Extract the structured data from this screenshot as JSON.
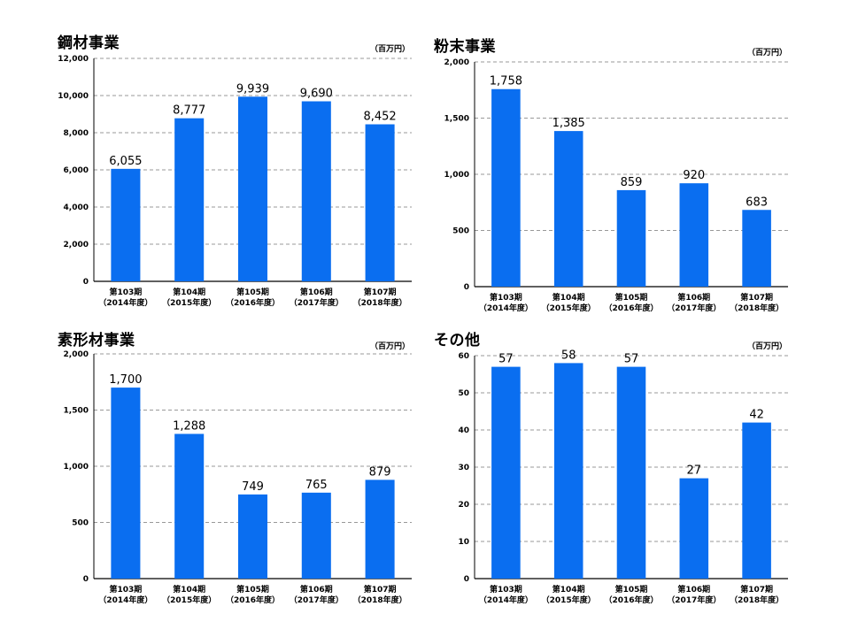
{
  "colors": {
    "bar": "#0a6ef0",
    "grid": "#999999",
    "axis": "#000000"
  },
  "chart_data": [
    {
      "type": "bar",
      "title": "鋼材事業",
      "unit": "（百万円）",
      "categories": [
        "第103期",
        "第104期",
        "第105期",
        "第106期",
        "第107期"
      ],
      "categories_sub": [
        "（2014年度）",
        "（2015年度）",
        "（2016年度）",
        "（2017年度）",
        "（2018年度）"
      ],
      "values": [
        6055,
        8777,
        9939,
        9690,
        8452
      ],
      "data_labels": [
        "6,055",
        "8,777",
        "9,939",
        "9,690",
        "8,452"
      ],
      "yticks": [
        0,
        2000,
        4000,
        6000,
        8000,
        10000,
        12000
      ],
      "ytick_labels": [
        "0",
        "2,000",
        "4,000",
        "6,000",
        "8,000",
        "10,000",
        "12,000"
      ],
      "ylim": [
        0,
        12000
      ],
      "grid": true
    },
    {
      "type": "bar",
      "title": "粉末事業",
      "unit": "（百万円）",
      "categories": [
        "第103期",
        "第104期",
        "第105期",
        "第106期",
        "第107期"
      ],
      "categories_sub": [
        "（2014年度）",
        "（2015年度）",
        "（2016年度）",
        "（2017年度）",
        "（2018年度）"
      ],
      "values": [
        1758,
        1385,
        859,
        920,
        683
      ],
      "data_labels": [
        "1,758",
        "1,385",
        "859",
        "920",
        "683"
      ],
      "yticks": [
        0,
        500,
        1000,
        1500,
        2000
      ],
      "ytick_labels": [
        "0",
        "500",
        "1,000",
        "1,500",
        "2,000"
      ],
      "ylim": [
        0,
        2000
      ],
      "grid": true
    },
    {
      "type": "bar",
      "title": "素形材事業",
      "unit": "（百万円）",
      "categories": [
        "第103期",
        "第104期",
        "第105期",
        "第106期",
        "第107期"
      ],
      "categories_sub": [
        "（2014年度）",
        "（2015年度）",
        "（2016年度）",
        "（2017年度）",
        "（2018年度）"
      ],
      "values": [
        1700,
        1288,
        749,
        765,
        879
      ],
      "data_labels": [
        "1,700",
        "1,288",
        "749",
        "765",
        "879"
      ],
      "yticks": [
        0,
        500,
        1000,
        1500,
        2000
      ],
      "ytick_labels": [
        "0",
        "500",
        "1,000",
        "1,500",
        "2,000"
      ],
      "ylim": [
        0,
        2000
      ],
      "grid": true
    },
    {
      "type": "bar",
      "title": "その他",
      "unit": "（百万円）",
      "categories": [
        "第103期",
        "第104期",
        "第105期",
        "第106期",
        "第107期"
      ],
      "categories_sub": [
        "（2014年度）",
        "（2015年度）",
        "（2016年度）",
        "（2017年度）",
        "（2018年度）"
      ],
      "values": [
        57,
        58,
        57,
        27,
        42
      ],
      "data_labels": [
        "57",
        "58",
        "57",
        "27",
        "42"
      ],
      "yticks": [
        0,
        10,
        20,
        30,
        40,
        50,
        60
      ],
      "ytick_labels": [
        "0",
        "10",
        "20",
        "30",
        "40",
        "50",
        "60"
      ],
      "ylim": [
        0,
        60
      ],
      "grid": true
    }
  ]
}
